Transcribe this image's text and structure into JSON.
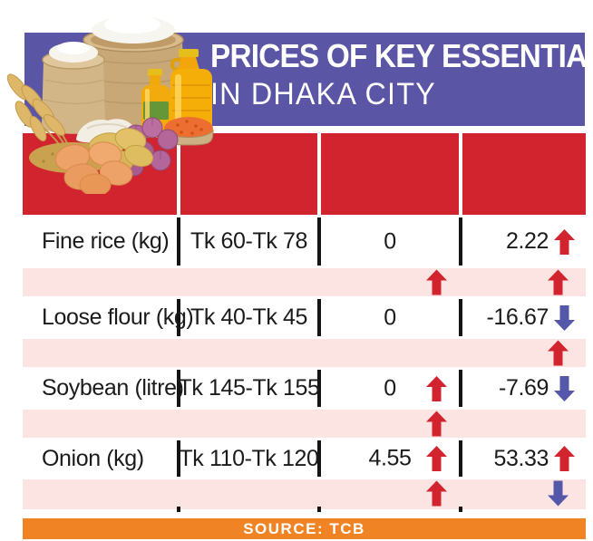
{
  "title": {
    "line1": "PRICES OF KEY ESSENTIALS",
    "line2": "IN DHAKA CITY"
  },
  "footer": {
    "source": "SOURCE: TCB"
  },
  "chart_data": {
    "type": "table",
    "title": "PRICES OF KEY ESSENTIALS IN DHAKA CITY",
    "source": "TCB",
    "rows": [
      {
        "item": "Fine rice (kg)",
        "price_range": "Tk 60-Tk 78",
        "change_a": {
          "value": "0",
          "arrow": null
        },
        "change_b": {
          "value": "2.22",
          "arrow": "up"
        }
      },
      {
        "item": "Loose flour (kg)",
        "price_range": "Tk 40-Tk 45",
        "change_a": {
          "value": "0",
          "arrow": null
        },
        "change_b": {
          "value": "-16.67",
          "arrow": "down"
        }
      },
      {
        "item": "Soybean (litre)",
        "price_range": "Tk 145-Tk 155",
        "change_a": {
          "value": "0",
          "arrow": "up"
        },
        "change_b": {
          "value": "-7.69",
          "arrow": "down"
        }
      },
      {
        "item": "Onion (kg)",
        "price_range": "Tk 110-Tk 120",
        "change_a": {
          "value": "4.55",
          "arrow": "up"
        },
        "change_b": {
          "value": "53.33",
          "arrow": "up"
        }
      }
    ],
    "stripe_rows": [
      {
        "change_a_arrow": "up",
        "change_b_arrow": "up"
      },
      {
        "change_a_arrow": null,
        "change_b_arrow": "up"
      },
      {
        "change_a_arrow": "up",
        "change_b_arrow": null
      },
      {
        "change_a_arrow": "up",
        "change_b_arrow": "down"
      }
    ]
  },
  "colors": {
    "banner": "#5a55a5",
    "header": "#d2242f",
    "stripe": "#fbe4e2",
    "footer_bar": "#f08424",
    "arrow_up": "#d2242f",
    "arrow_down": "#5557a9",
    "text": "#1b1b1b"
  },
  "icons": {
    "arrow_up": "⬆",
    "arrow_down": "⬇",
    "illustration": "food-illustration"
  }
}
